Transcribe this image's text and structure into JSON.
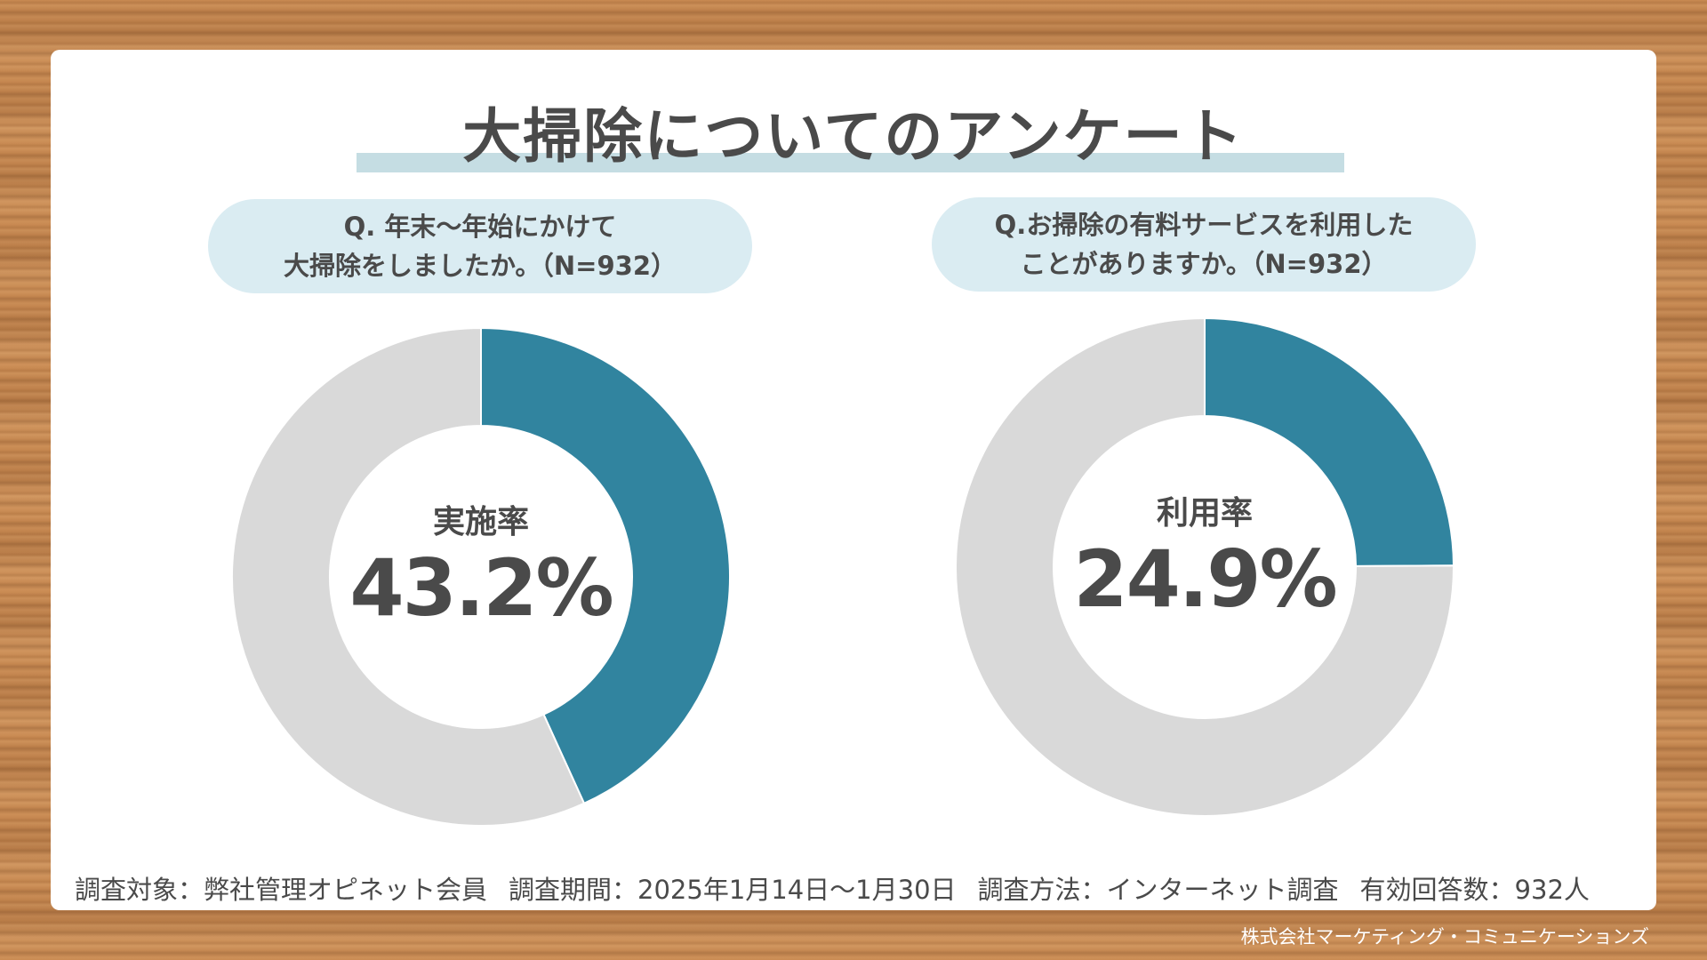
{
  "title": "大掃除についてのアンケート",
  "questions": [
    {
      "line1": "Q. 年末〜年始にかけて",
      "line2": "大掃除をしましたか。（N=932）"
    },
    {
      "line1": "Q.お掃除の有料サービスを利用した",
      "line2": "ことがありますか。（N=932）"
    }
  ],
  "chart_data": [
    {
      "type": "pie",
      "center_label": "実施率",
      "center_value": "43.2%",
      "slices": [
        {
          "value": 43.2,
          "color": "#31849f"
        },
        {
          "value": 56.8,
          "color": "#d9d9d9"
        }
      ]
    },
    {
      "type": "pie",
      "center_label": "利用率",
      "center_value": "24.9%",
      "slices": [
        {
          "value": 24.9,
          "color": "#31849f"
        },
        {
          "value": 75.1,
          "color": "#d9d9d9"
        }
      ]
    }
  ],
  "footer": {
    "target": "調査対象：弊社管理オピネット会員",
    "period": "調査期間：2025年1月14日〜1月30日",
    "method": "調査方法：インターネット調査",
    "responses": "有効回答数：932人"
  },
  "company": "株式会社マーケティング・コミュニケーションズ"
}
